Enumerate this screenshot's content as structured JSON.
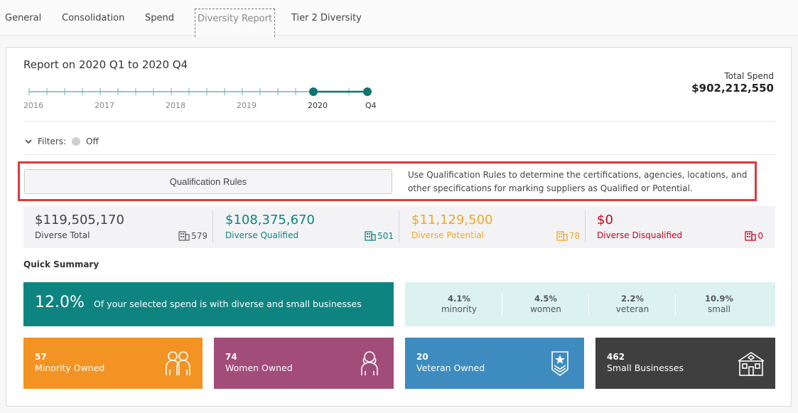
{
  "tabs": [
    "General",
    "Consolidation",
    "Spend",
    "Diversity Report",
    "Tier 2 Diversity"
  ],
  "report": {
    "title": "Report on 2020 Q1 to 2020 Q4",
    "total_spend_label": "Total Spend",
    "total_spend_value": "$902,212,550"
  },
  "timeline": {
    "labels": [
      "2016",
      "2017",
      "2018",
      "2019",
      "2020",
      "Q4"
    ],
    "selected_range": [
      "2020",
      "Q4"
    ]
  },
  "filters": {
    "label": "Filters:",
    "state": "Off"
  },
  "qualification": {
    "button_label": "Qualification Rules",
    "description": "Use Qualification Rules to determine the certifications, agencies, locations, and other specifications for marking suppliers as Qualified or Potential."
  },
  "stats": [
    {
      "value": "$119,505,170",
      "label": "Diverse Total",
      "count": "579",
      "color": "#444444"
    },
    {
      "value": "$108,375,670",
      "label": "Diverse Qualified",
      "count": "501",
      "color": "#0e8480"
    },
    {
      "value": "$11,129,500",
      "label": "Diverse Potential",
      "count": "78",
      "color": "#f5a623"
    },
    {
      "value": "$0",
      "label": "Diverse Disqualified",
      "count": "0",
      "color": "#d0021b"
    }
  ],
  "quick_summary": {
    "title": "Quick Summary",
    "percent": "12.0%",
    "text": "Of your selected spend is with diverse and small businesses",
    "breakdown": [
      {
        "pct": "4.1%",
        "name": "minority"
      },
      {
        "pct": "4.5%",
        "name": "women"
      },
      {
        "pct": "2.2%",
        "name": "veteran"
      },
      {
        "pct": "10.9%",
        "name": "small"
      }
    ]
  },
  "tiles": [
    {
      "count": "57",
      "name": "Minority Owned",
      "color": "#f39323",
      "icon": "group-people-icon"
    },
    {
      "count": "74",
      "name": "Women Owned",
      "color": "#a24c7a",
      "icon": "woman-icon"
    },
    {
      "count": "20",
      "name": "Veteran Owned",
      "color": "#3e8bbf",
      "icon": "veteran-badge-icon"
    },
    {
      "count": "462",
      "name": "Small Businesses",
      "color": "#3f3f3f",
      "icon": "storefront-icon"
    }
  ]
}
